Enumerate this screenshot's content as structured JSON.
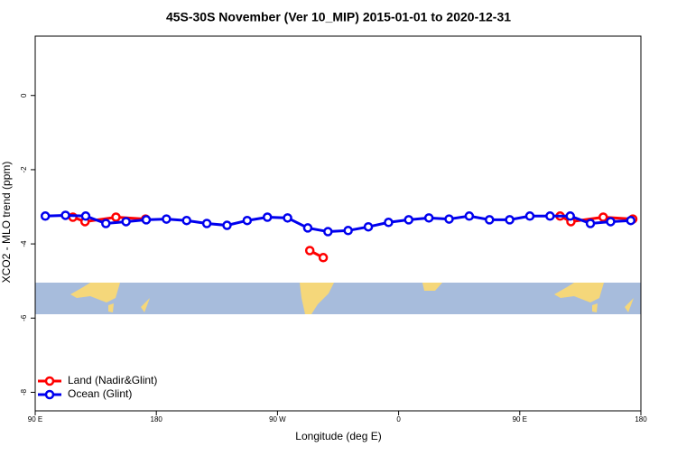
{
  "chart_data": {
    "type": "line",
    "title": "45S-30S November (Ver 10_MIP)   2015-01-01 to 2020-12-31",
    "x_label": "Longitude (deg E)",
    "y_label": "XCO2 - MLO trend (ppm)",
    "xlim": [
      90,
      540
    ],
    "xticks": [
      {
        "value": 90,
        "label": "90 E"
      },
      {
        "value": 180,
        "label": "180"
      },
      {
        "value": 270,
        "label": "90 W"
      },
      {
        "value": 360,
        "label": "0"
      },
      {
        "value": 450,
        "label": "90 E"
      },
      {
        "value": 540,
        "label": "180"
      }
    ],
    "ylim": [
      -8.5,
      1.6
    ],
    "yticks": [
      0,
      -2,
      -4,
      -6,
      -8
    ],
    "legend": "bottom-left",
    "series": [
      {
        "name": "Land (Nadir&Glint)",
        "color": "#ff0000",
        "x": [
          118,
          127,
          150,
          172,
          233,
          294,
          304,
          392,
          480,
          488,
          512,
          534
        ],
        "values": [
          -3.28,
          -3.4,
          -3.28,
          -3.33,
          null,
          -4.18,
          -4.37,
          null,
          -3.25,
          -3.4,
          -3.28,
          -3.33
        ]
      },
      {
        "name": "Ocean (Glint)",
        "color": "#0000ee",
        "x": [
          97.5,
          112.5,
          127.5,
          142.5,
          157.5,
          172.5,
          187.5,
          202.5,
          217.5,
          232.5,
          247.5,
          262.5,
          277.5,
          292.5,
          307.5,
          322.5,
          337.5,
          352.5,
          367.5,
          382.5,
          397.5,
          412.5,
          427.5,
          442.5,
          457.5,
          472.5,
          487.5,
          502.5,
          517.5,
          532.5
        ],
        "values": [
          -3.25,
          -3.23,
          -3.25,
          -3.45,
          -3.4,
          -3.35,
          -3.33,
          -3.37,
          -3.45,
          -3.5,
          -3.37,
          -3.28,
          -3.3,
          -3.57,
          -3.67,
          -3.64,
          -3.54,
          -3.42,
          -3.35,
          -3.3,
          -3.33,
          -3.25,
          -3.35,
          -3.35,
          -3.25,
          -3.25,
          -3.25,
          -3.45,
          -3.4,
          -3.37
        ]
      }
    ]
  }
}
